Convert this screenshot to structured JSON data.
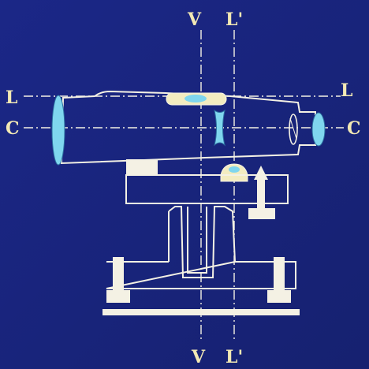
{
  "labels": {
    "v_top": "V",
    "l_prime_top": "L'",
    "l_left": "L",
    "l_right": "L",
    "c_left": "C",
    "c_right": "C",
    "v_bottom": "V",
    "l_prime_bottom": "L'"
  },
  "colors": {
    "background": "#1a2580",
    "line": "#f4f1e4",
    "label": "#f2e8b4",
    "lens": "#7fd6ee",
    "bubble": "#f3ecc0"
  }
}
